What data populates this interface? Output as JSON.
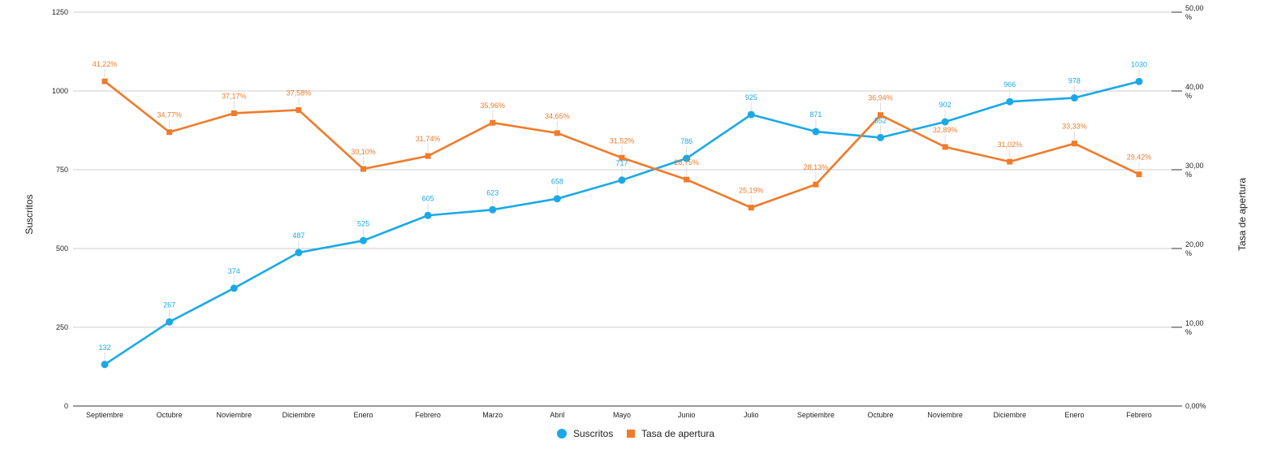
{
  "chart_data": {
    "type": "line",
    "categories": [
      "Septiembre",
      "Octubre",
      "Noviembre",
      "Diciembre",
      "Enero",
      "Febrero",
      "Marzo",
      "Abril",
      "Mayo",
      "Junio",
      "Julio",
      "Septiembre",
      "Octubre",
      "Noviembre",
      "Diciembre",
      "Enero",
      "Febrero"
    ],
    "y_left": {
      "label": "Suscritos",
      "range": [
        0,
        1250
      ],
      "ticks": [
        0,
        250,
        500,
        750,
        1000,
        1250
      ],
      "tick_labels": [
        "0",
        "250",
        "500",
        "750",
        "1000",
        "1250"
      ]
    },
    "y_right": {
      "label": "Tasa de apertura",
      "range": [
        0,
        50
      ],
      "ticks": [
        0,
        10,
        20,
        30,
        40,
        50
      ],
      "tick_labels": [
        "0,00%",
        "10,00 %",
        "20,00 %",
        "30,00 %",
        "40,00 %",
        "50,00 %"
      ]
    },
    "series": [
      {
        "name": "Suscritos",
        "axis": "left",
        "color": "#1aa9e6",
        "marker": "circle",
        "values": [
          132,
          267,
          374,
          487,
          525,
          605,
          623,
          658,
          717,
          786,
          925,
          871,
          852,
          902,
          966,
          978,
          1030
        ],
        "labels": [
          "132",
          "267",
          "374",
          "487",
          "525",
          "605",
          "623",
          "658",
          "717",
          "786",
          "925",
          "871",
          "852",
          "902",
          "966",
          "978",
          "1030"
        ]
      },
      {
        "name": "Tasa de apertura",
        "axis": "right",
        "color": "#f07b2b",
        "marker": "square",
        "values": [
          41.22,
          34.77,
          37.17,
          37.58,
          30.1,
          31.74,
          35.96,
          34.65,
          31.52,
          28.75,
          25.19,
          28.13,
          36.94,
          32.89,
          31.02,
          33.33,
          29.42
        ],
        "labels": [
          "41,22%",
          "34,77%",
          "37,17%",
          "37,58%",
          "30,10%",
          "31,74%",
          "35,96%",
          "34,65%",
          "31,52%",
          "28,75%",
          "25,19%",
          "28,13%",
          "36,94%",
          "32,89%",
          "31,02%",
          "33,33%",
          "29,42%"
        ]
      }
    ],
    "grid": true,
    "legend_position": "bottom"
  }
}
